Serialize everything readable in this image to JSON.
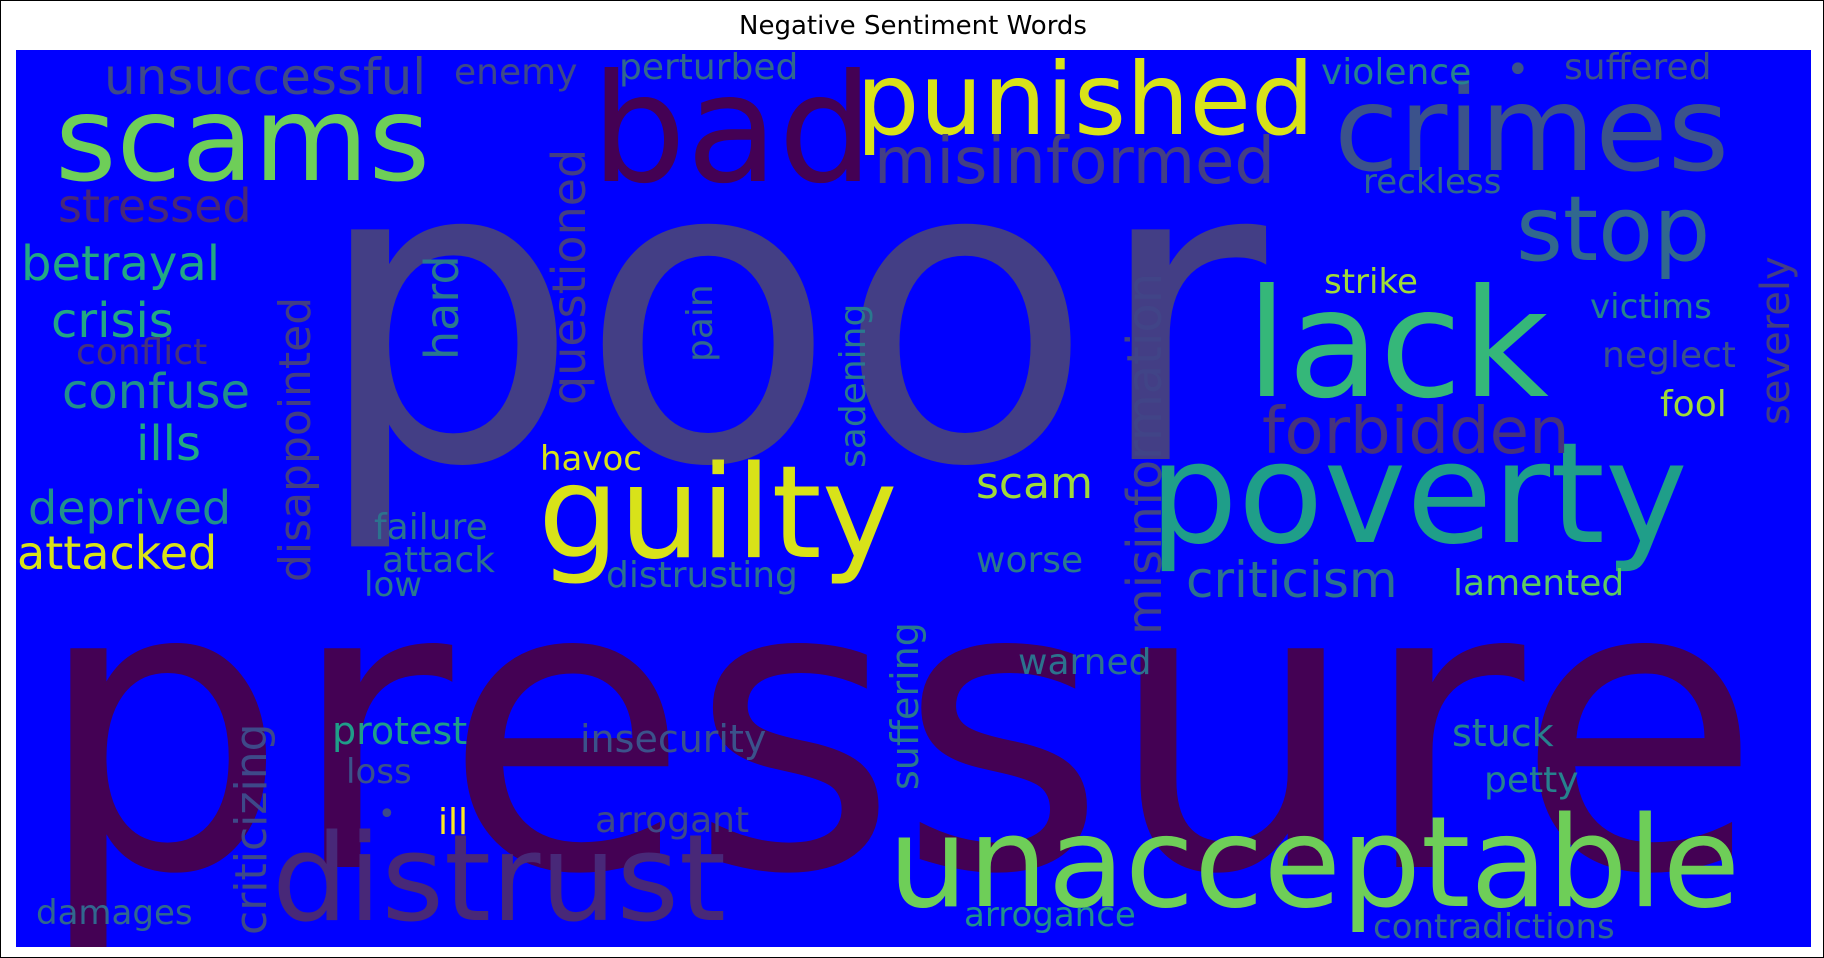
{
  "title": "Negative Sentiment Words",
  "palette": {
    "background": "#0000ff",
    "dark_purple": "#440154",
    "slate": "#433e85",
    "blue_gray": "#3b528b",
    "steel": "#31688e",
    "teal": "#26828e",
    "sea": "#1f9e89",
    "green": "#35b779",
    "light_green": "#6ece58",
    "yellow_green": "#b5de2b",
    "yellow": "#fde725"
  },
  "words": [
    {
      "text": "poor",
      "color": "#433e85"
    },
    {
      "text": "pressure",
      "color": "#440154"
    },
    {
      "text": "bad",
      "color": "#440154"
    },
    {
      "text": "crimes",
      "color": "#3b528b"
    },
    {
      "text": "scams",
      "color": "#6ece58"
    },
    {
      "text": "punished",
      "color": "#d8e219"
    },
    {
      "text": "lack",
      "color": "#35b779"
    },
    {
      "text": "poverty",
      "color": "#1f9e89"
    },
    {
      "text": "guilty",
      "color": "#d8e219"
    },
    {
      "text": "unacceptable",
      "color": "#6ece58"
    },
    {
      "text": "distrust",
      "color": "#482878"
    },
    {
      "text": "stop",
      "color": "#31688e"
    },
    {
      "text": "misinformed",
      "color": "#433e85"
    },
    {
      "text": "unsuccessful",
      "color": "#3e4989"
    },
    {
      "text": "forbidden",
      "color": "#46327e"
    },
    {
      "text": "criticism",
      "color": "#2c728e"
    },
    {
      "text": "misinformation",
      "color": "#414487"
    },
    {
      "text": "questioned",
      "color": "#433e85"
    },
    {
      "text": "disappointed",
      "color": "#433e85"
    },
    {
      "text": "criticizing",
      "color": "#3e4989"
    },
    {
      "text": "suffering",
      "color": "#2a788e"
    },
    {
      "text": "sadening",
      "color": "#2a788e"
    },
    {
      "text": "hard",
      "color": "#2a788e"
    },
    {
      "text": "pain",
      "color": "#31688e"
    },
    {
      "text": "severely",
      "color": "#433e85"
    },
    {
      "text": "stressed",
      "color": "#482878"
    },
    {
      "text": "betrayal",
      "color": "#22a884"
    },
    {
      "text": "crisis",
      "color": "#22a884"
    },
    {
      "text": "conflict",
      "color": "#46327e"
    },
    {
      "text": "confuse",
      "color": "#21918c"
    },
    {
      "text": "ills",
      "color": "#22a884"
    },
    {
      "text": "deprived",
      "color": "#21918c"
    },
    {
      "text": "attacked",
      "color": "#d8e219"
    },
    {
      "text": "enemy",
      "color": "#3e4989"
    },
    {
      "text": "perturbed",
      "color": "#31688e"
    },
    {
      "text": "violence",
      "color": "#26828e"
    },
    {
      "text": "suffered",
      "color": "#3b528b"
    },
    {
      "text": "reckless",
      "color": "#31688e"
    },
    {
      "text": "strike",
      "color": "#a0da39"
    },
    {
      "text": "victims",
      "color": "#26828e"
    },
    {
      "text": "neglect",
      "color": "#3b528b"
    },
    {
      "text": "fool",
      "color": "#a0da39"
    },
    {
      "text": "havoc",
      "color": "#d8e219"
    },
    {
      "text": "scam",
      "color": "#a0da39"
    },
    {
      "text": "failure",
      "color": "#2c728e"
    },
    {
      "text": "attack",
      "color": "#2c728e"
    },
    {
      "text": "low",
      "color": "#2a788e"
    },
    {
      "text": "distrusting",
      "color": "#2c728e"
    },
    {
      "text": "worse",
      "color": "#2a788e"
    },
    {
      "text": "lamented",
      "color": "#5ec962"
    },
    {
      "text": "warned",
      "color": "#2c728e"
    },
    {
      "text": "protest",
      "color": "#1f9e89"
    },
    {
      "text": "insecurity",
      "color": "#3b528b"
    },
    {
      "text": "loss",
      "color": "#3b528b"
    },
    {
      "text": "stuck",
      "color": "#26828e"
    },
    {
      "text": "petty",
      "color": "#26828e"
    },
    {
      "text": "ill",
      "color": "#fde725"
    },
    {
      "text": "arrogant",
      "color": "#3e4989"
    },
    {
      "text": "damages",
      "color": "#31688e"
    },
    {
      "text": "arrogance",
      "color": "#21918c"
    },
    {
      "text": "contradictions",
      "color": "#31688e"
    },
    {
      "text": "•",
      "color": "#3e4989"
    },
    {
      "text": "•",
      "color": "#3b528b"
    }
  ]
}
